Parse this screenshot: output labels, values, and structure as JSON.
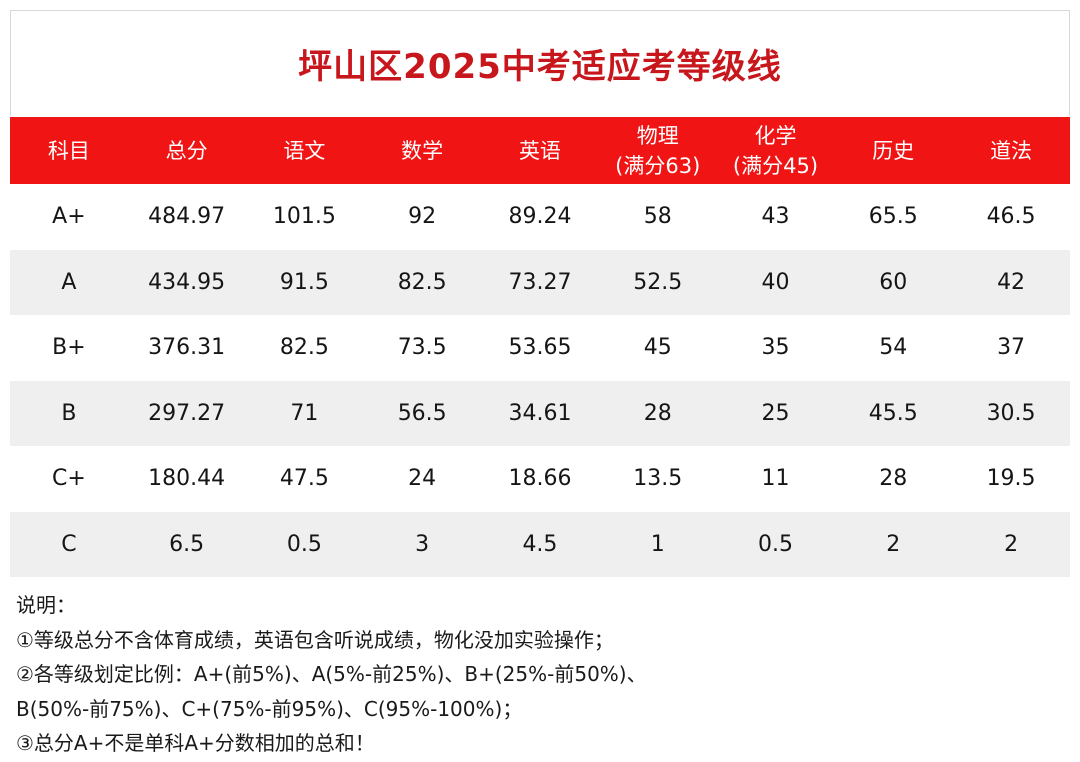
{
  "title": "坪山区2025中考适应考等级线",
  "table": {
    "headers": [
      {
        "line1": "科目",
        "line2": ""
      },
      {
        "line1": "总分",
        "line2": ""
      },
      {
        "line1": "语文",
        "line2": ""
      },
      {
        "line1": "数学",
        "line2": ""
      },
      {
        "line1": "英语",
        "line2": ""
      },
      {
        "line1": "物理",
        "line2": "(满分63)"
      },
      {
        "line1": "化学",
        "line2": "(满分45)"
      },
      {
        "line1": "历史",
        "line2": ""
      },
      {
        "line1": "道法",
        "line2": ""
      }
    ],
    "rows": [
      [
        "A+",
        "484.97",
        "101.5",
        "92",
        "89.24",
        "58",
        "43",
        "65.5",
        "46.5"
      ],
      [
        "A",
        "434.95",
        "91.5",
        "82.5",
        "73.27",
        "52.5",
        "40",
        "60",
        "42"
      ],
      [
        "B+",
        "376.31",
        "82.5",
        "73.5",
        "53.65",
        "45",
        "35",
        "54",
        "37"
      ],
      [
        "B",
        "297.27",
        "71",
        "56.5",
        "34.61",
        "28",
        "25",
        "45.5",
        "30.5"
      ],
      [
        "C+",
        "180.44",
        "47.5",
        "24",
        "18.66",
        "13.5",
        "11",
        "28",
        "19.5"
      ],
      [
        "C",
        "6.5",
        "0.5",
        "3",
        "4.5",
        "1",
        "0.5",
        "2",
        "2"
      ]
    ]
  },
  "notes": [
    "说明：",
    "①等级总分不含体育成绩，英语包含听说成绩，物化没加实验操作；",
    "②各等级划定比例：A+(前5%)、A(5%-前25%)、B+(25%-前50%)、",
    "B(50%-前75%)、C+(75%-前95%)、C(95%-100%)；",
    "③总分A+不是单科A+分数相加的总和！"
  ],
  "colors": {
    "title_red": "#c8161d",
    "header_red": "#f01414",
    "stripe_gray": "#efefef"
  }
}
